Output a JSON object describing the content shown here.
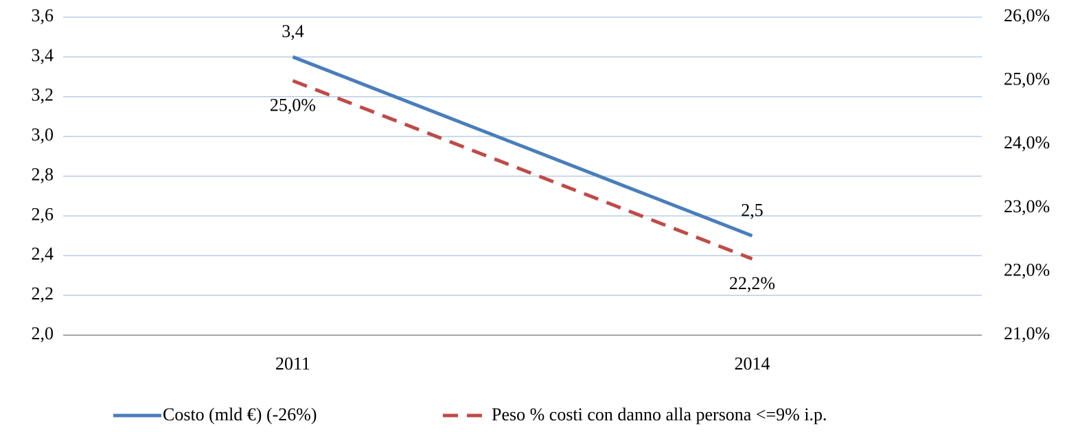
{
  "chart_data": {
    "type": "line",
    "categories": [
      "2011",
      "2014"
    ],
    "series": [
      {
        "name": "Costo (mld €) (-26%)",
        "color": "#4a7ebb",
        "values": [
          3.4,
          2.5
        ],
        "value_labels": [
          "3,4",
          "2,5"
        ]
      },
      {
        "name": "Peso % costi con danno alla persona <=9% i.p.",
        "color": "#be4b48",
        "dashed": true,
        "axis": "y2",
        "values": [
          25.0,
          22.2
        ],
        "value_labels": [
          "25,0%",
          "22,2%"
        ]
      }
    ],
    "ylim": [
      2.0,
      3.6
    ],
    "yticks": [
      {
        "value": 2.0,
        "label": "2,0"
      },
      {
        "value": 2.2,
        "label": "2,2"
      },
      {
        "value": 2.4,
        "label": "2,4"
      },
      {
        "value": 2.6,
        "label": "2,6"
      },
      {
        "value": 2.8,
        "label": "2,8"
      },
      {
        "value": 3.0,
        "label": "3,0"
      },
      {
        "value": 3.2,
        "label": "3,2"
      },
      {
        "value": 3.4,
        "label": "3,4"
      },
      {
        "value": 3.6,
        "label": "3,6"
      }
    ],
    "y2lim": [
      21.0,
      26.0
    ],
    "y2ticks": [
      {
        "value": 21.0,
        "label": "21,0%"
      },
      {
        "value": 22.0,
        "label": "22,0%"
      },
      {
        "value": 23.0,
        "label": "23,0%"
      },
      {
        "value": 24.0,
        "label": "24,0%"
      },
      {
        "value": 25.0,
        "label": "25,0%"
      },
      {
        "value": 26.0,
        "label": "26,0%"
      }
    ],
    "grid": true,
    "legend": "bottom"
  }
}
